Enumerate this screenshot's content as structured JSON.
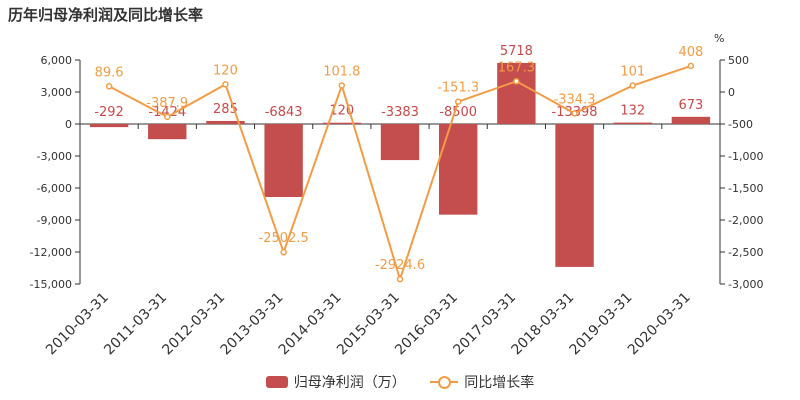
{
  "title": "历年归母净利润及同比增长率",
  "colors": {
    "bar": "#c44e4e",
    "line": "#f39c45"
  },
  "legend": {
    "bar_label": "归母净利润（万）",
    "line_label": "同比增长率"
  },
  "chart_data": {
    "type": "bar",
    "title": "历年归母净利润及同比增长率",
    "categories": [
      "2010-03-31",
      "2011-03-31",
      "2012-03-31",
      "2013-03-31",
      "2014-03-31",
      "2015-03-31",
      "2016-03-31",
      "2017-03-31",
      "2018-03-31",
      "2019-03-31",
      "2020-03-31"
    ],
    "series": [
      {
        "name": "归母净利润（万）",
        "type": "bar",
        "axis": "left",
        "values": [
          -292,
          -1424,
          285,
          -6843,
          120,
          -3383,
          -8500,
          5718,
          -13398,
          132,
          673
        ],
        "labels": [
          "-292",
          "-1424",
          "285",
          "-6843",
          "120",
          "-3383",
          "-8500",
          "5718",
          "-13398",
          "132",
          "673"
        ]
      },
      {
        "name": "同比增长率",
        "type": "line",
        "axis": "right",
        "values": [
          89.6,
          -387.9,
          120,
          -2502.5,
          101.8,
          -2924.6,
          -151.3,
          167.3,
          -334.3,
          101,
          408
        ],
        "labels": [
          "89.6",
          "-387.9",
          "120",
          "-2502.5",
          "101.8",
          "-2924.6",
          "-151.3",
          "167.3",
          "-334.3",
          "101",
          "408"
        ]
      }
    ],
    "y_left": {
      "ylim": [
        -15000,
        6000
      ],
      "ticks": [
        "6,000",
        "3,000",
        "0",
        "-3,000",
        "-6,000",
        "-9,000",
        "-12,000",
        "-15,000"
      ],
      "tick_values": [
        6000,
        3000,
        0,
        -3000,
        -6000,
        -9000,
        -12000,
        -15000
      ]
    },
    "y_right": {
      "unit": "%",
      "ylim": [
        -3000,
        500
      ],
      "ticks": [
        "500",
        "0",
        "-500",
        "-1,000",
        "-1,500",
        "-2,000",
        "-2,500",
        "-3,000"
      ],
      "tick_values": [
        500,
        0,
        -500,
        -1000,
        -1500,
        -2000,
        -2500,
        -3000
      ]
    },
    "grid": false,
    "legend_position": "bottom"
  }
}
